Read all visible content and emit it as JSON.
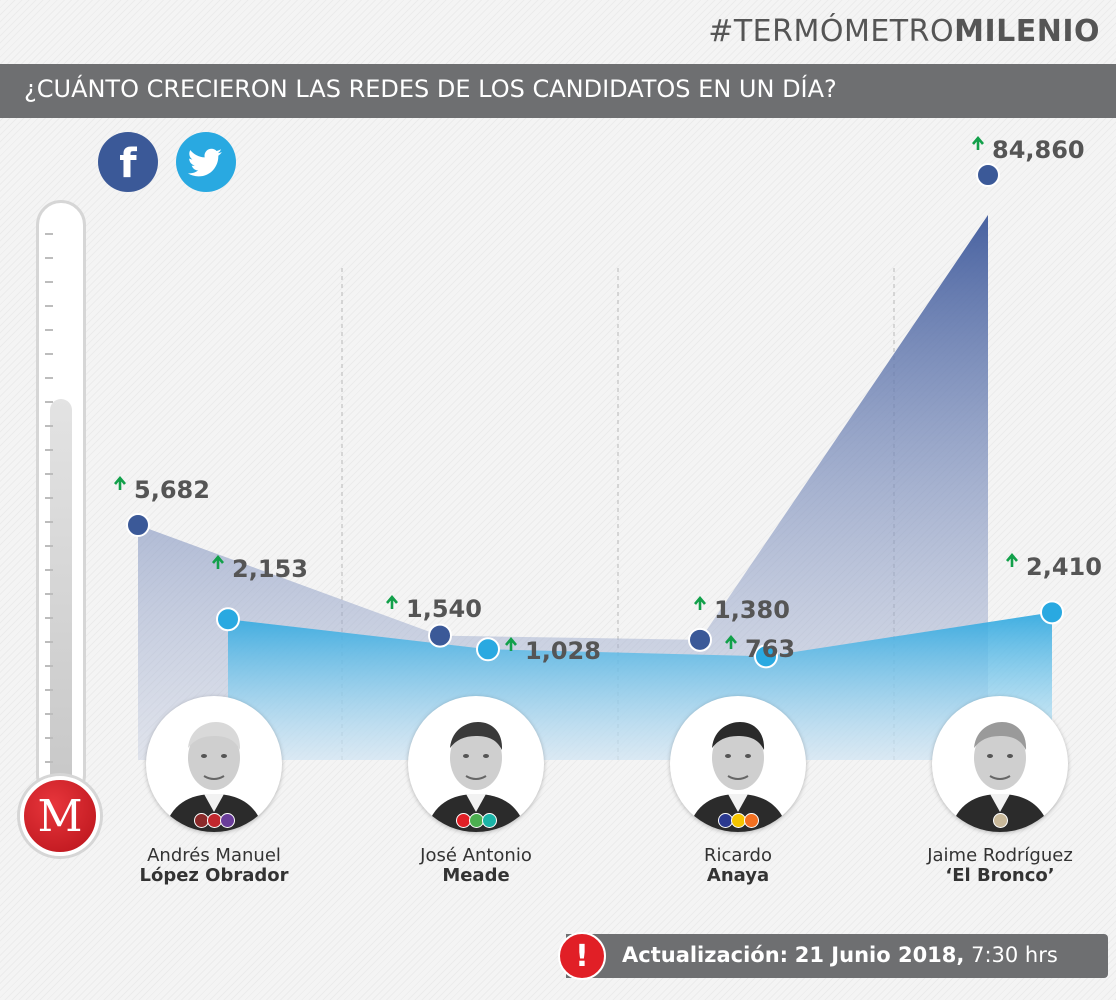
{
  "header": {
    "hashtag_light": "#TERMÓMETRO",
    "hashtag_bold": "MILENIO",
    "title": "¿CUÁNTO CRECIERON LAS REDES DE LOS CANDIDATOS EN UN DÍA?"
  },
  "social": [
    {
      "name": "facebook",
      "icon": "facebook-icon",
      "color": "#3b5998"
    },
    {
      "name": "twitter",
      "icon": "twitter-icon",
      "color": "#29a9e1"
    }
  ],
  "logo": {
    "letter": "M"
  },
  "chart_data": {
    "type": "area",
    "title": "¿CUÁNTO CRECIERON LAS REDES DE LOS CANDIDATOS EN UN DÍA?",
    "categories": [
      "Andrés Manuel López Obrador",
      "José Antonio Meade",
      "Ricardo Anaya",
      "Jaime Rodríguez 'El Bronco'"
    ],
    "series": [
      {
        "platform": "facebook",
        "color": "#3b5998",
        "values": [
          5682,
          1540,
          1380,
          84860
        ],
        "labels": [
          "5,682",
          "1,540",
          "1,380",
          "84,860"
        ]
      },
      {
        "platform": "twitter",
        "color": "#29a9e1",
        "values": [
          2153,
          1028,
          763,
          2410
        ],
        "labels": [
          "2,153",
          "1,028",
          "763",
          "2,410"
        ]
      }
    ],
    "axis_scale": "non-linear (illustrative)",
    "grid": false,
    "legend": "icons top-left"
  },
  "candidates": [
    {
      "first": "Andrés Manuel",
      "last": "López Obrador",
      "parties": [
        "#8b2a2a",
        "#c0272d",
        "#6a3d9a"
      ]
    },
    {
      "first": "José Antonio",
      "last": "Meade",
      "parties": [
        "#e11f26",
        "#4caf50",
        "#1bb4a7"
      ]
    },
    {
      "first": "Ricardo",
      "last": "Anaya",
      "parties": [
        "#2b3990",
        "#f5c500",
        "#f37021"
      ]
    },
    {
      "first": "Jaime Rodríguez",
      "last": "‘El Bronco’",
      "parties": [
        "#c9b99a"
      ]
    }
  ],
  "update": {
    "label": "Actualización:",
    "date": "21 Junio 2018,",
    "time": "7:30 hrs"
  }
}
